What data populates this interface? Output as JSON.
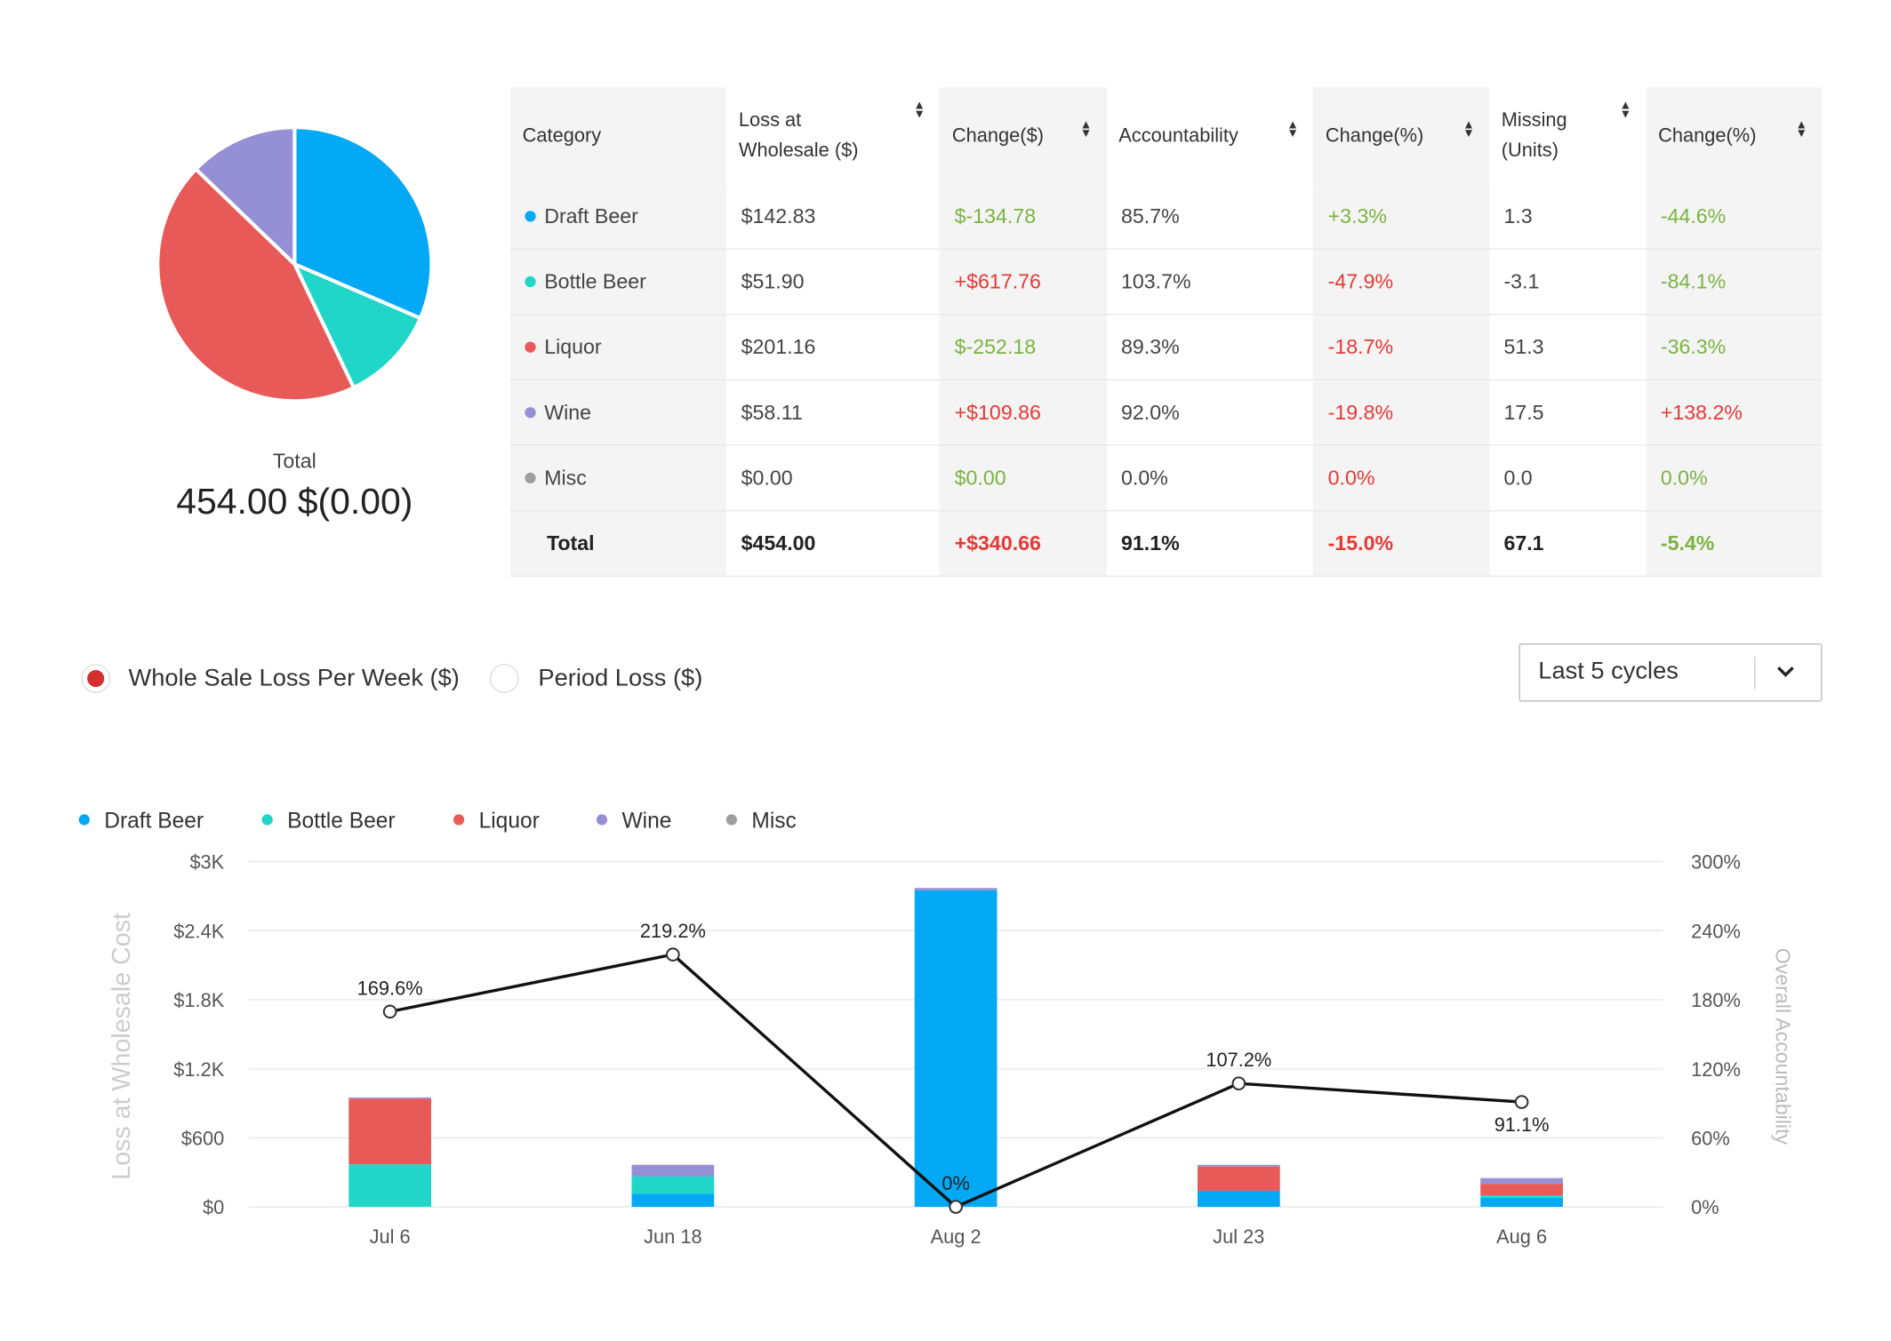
{
  "pie": {
    "total_label": "Total",
    "total_value": "454.00 $(0.00)"
  },
  "table": {
    "headers": [
      "Category",
      "Loss at Wholesale ($)",
      "Change($)",
      "Accountability",
      "Change(%)",
      "Missing (Units)",
      "Change(%)"
    ],
    "rows": [
      {
        "category": "Draft Beer",
        "color": "#03a9f4",
        "loss": "$142.83",
        "change_d": "$-134.78",
        "change_d_tone": "pos",
        "acc": "85.7%",
        "change_p": "+3.3%",
        "change_p_tone": "pos",
        "missing": "1.3",
        "change_m": "-44.6%",
        "change_m_tone": "pos"
      },
      {
        "category": "Bottle Beer",
        "color": "#1fd6c9",
        "loss": "$51.90",
        "change_d": "+$617.76",
        "change_d_tone": "neg",
        "acc": "103.7%",
        "change_p": "-47.9%",
        "change_p_tone": "neg",
        "missing": "-3.1",
        "change_m": "-84.1%",
        "change_m_tone": "pos"
      },
      {
        "category": "Liquor",
        "color": "#e85a57",
        "loss": "$201.16",
        "change_d": "$-252.18",
        "change_d_tone": "pos",
        "acc": "89.3%",
        "change_p": "-18.7%",
        "change_p_tone": "neg",
        "missing": "51.3",
        "change_m": "-36.3%",
        "change_m_tone": "pos"
      },
      {
        "category": "Wine",
        "color": "#9590d6",
        "loss": "$58.11",
        "change_d": "+$109.86",
        "change_d_tone": "neg",
        "acc": "92.0%",
        "change_p": "-19.8%",
        "change_p_tone": "neg",
        "missing": "17.5",
        "change_m": "+138.2%",
        "change_m_tone": "neg"
      },
      {
        "category": "Misc",
        "color": "#9e9e9e",
        "loss": "$0.00",
        "change_d": "$0.00",
        "change_d_tone": "pos",
        "acc": "0.0%",
        "change_p": "0.0%",
        "change_p_tone": "neg",
        "missing": "0.0",
        "change_m": "0.0%",
        "change_m_tone": "pos"
      }
    ],
    "total": {
      "category": "Total",
      "loss": "$454.00",
      "change_d": "+$340.66",
      "change_d_tone": "neg",
      "acc": "91.1%",
      "change_p": "-15.0%",
      "change_p_tone": "neg",
      "missing": "67.1",
      "change_m": "-5.4%",
      "change_m_tone": "pos"
    }
  },
  "controls": {
    "radio_options": [
      {
        "label": "Whole Sale Loss Per Week ($)",
        "selected": true
      },
      {
        "label": "Period Loss ($)",
        "selected": false
      }
    ],
    "range_select": "Last 5 cycles",
    "range_icon": "chevron-down-icon"
  },
  "chart_data": [
    {
      "type": "pie",
      "categories": [
        "Draft Beer",
        "Bottle Beer",
        "Liquor",
        "Wine",
        "Misc"
      ],
      "values": [
        142.83,
        51.9,
        201.16,
        58.11,
        0.0
      ],
      "colors": [
        "#03a9f4",
        "#1fd6c9",
        "#e85a57",
        "#9590d6",
        "#9e9e9e"
      ]
    },
    {
      "type": "bar",
      "stacked": true,
      "categories": [
        "Jul 6",
        "Jun 18",
        "Aug 2",
        "Jul 23",
        "Aug 6"
      ],
      "ylabel": "Loss at Wholesale Cost",
      "y2label": "Overall Accountability",
      "ylim": [
        0,
        3000
      ],
      "y2lim": [
        0,
        300
      ],
      "yticks": [
        "$0",
        "$600",
        "$1.2K",
        "$1.8K",
        "$2.4K",
        "$3K"
      ],
      "y2ticks": [
        "0%",
        "60%",
        "120%",
        "180%",
        "240%",
        "300%"
      ],
      "grid": true,
      "legend": "top-left",
      "series": [
        {
          "name": "Draft Beer",
          "color": "#03a9f4",
          "values": [
            0,
            115,
            2750,
            140,
            80
          ]
        },
        {
          "name": "Bottle Beer",
          "color": "#1fd6c9",
          "values": [
            370,
            150,
            0,
            0,
            20
          ]
        },
        {
          "name": "Liquor",
          "color": "#e85a57",
          "values": [
            570,
            0,
            0,
            210,
            100
          ]
        },
        {
          "name": "Wine",
          "color": "#9590d6",
          "values": [
            10,
            100,
            20,
            15,
            50
          ]
        },
        {
          "name": "Misc",
          "color": "#9e9e9e",
          "values": [
            0,
            0,
            0,
            0,
            0
          ]
        }
      ],
      "line": {
        "axis": "right",
        "color": "#111111",
        "values": [
          169.6,
          219.2,
          0,
          107.2,
          91.1
        ],
        "labels": [
          "169.6%",
          "219.2%",
          "0%",
          "107.2%",
          "91.1%"
        ]
      }
    }
  ]
}
